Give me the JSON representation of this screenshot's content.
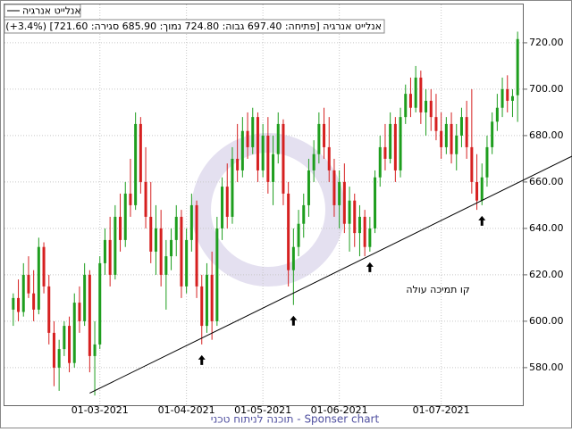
{
  "chart_data": {
    "type": "candlestick",
    "legend": "אנלייט אנרגיה",
    "info": "אנלייט אנרגיה [פתיחה: 697.40  גבוה: 724.80  נמוך: 685.90  סגירה: 721.60] (3.4%+)",
    "annotation": "קו תמיכה עולה",
    "footer": "Sponser chart - תוכנה לניתוח טכני",
    "up_color": "#1e9e1e",
    "down_color": "#d62020",
    "grid": true,
    "ylim": [
      563.8,
      736.9
    ],
    "yticks": [
      {
        "value": 580,
        "label": "580.00"
      },
      {
        "value": 600,
        "label": "600.00"
      },
      {
        "value": 620,
        "label": "620.00"
      },
      {
        "value": 640,
        "label": "640.00"
      },
      {
        "value": 660,
        "label": "660.00"
      },
      {
        "value": 680,
        "label": "680.00"
      },
      {
        "value": 700,
        "label": "700.00"
      },
      {
        "value": 720,
        "label": "720.00"
      }
    ],
    "categories": [
      null,
      null,
      null,
      null,
      null,
      null,
      null,
      null,
      null,
      null,
      null,
      null,
      null,
      null,
      null,
      null,
      null,
      "01-03-2021",
      null,
      null,
      null,
      null,
      null,
      null,
      null,
      null,
      null,
      null,
      null,
      null,
      null,
      null,
      null,
      null,
      "01-04-2021",
      null,
      null,
      null,
      null,
      null,
      null,
      null,
      null,
      null,
      null,
      null,
      null,
      null,
      null,
      "01-05-2021",
      null,
      null,
      null,
      null,
      null,
      null,
      null,
      null,
      null,
      null,
      null,
      null,
      null,
      null,
      "01-06-2021",
      null,
      null,
      null,
      null,
      null,
      null,
      null,
      null,
      null,
      null,
      null,
      null,
      null,
      null,
      null,
      null,
      null,
      null,
      null,
      "01-07-2021",
      null,
      null,
      null,
      null,
      null,
      null,
      null,
      null,
      null,
      null,
      null,
      null,
      null,
      null,
      null
    ],
    "open": [
      605,
      610,
      604,
      620,
      612,
      605,
      632,
      615,
      595,
      580,
      588,
      598,
      582,
      608,
      600,
      620,
      585,
      590,
      625,
      635,
      620,
      645,
      635,
      655,
      650,
      685,
      660,
      645,
      630,
      640,
      620,
      628,
      635,
      645,
      615,
      635,
      650,
      615,
      598,
      620,
      600,
      640,
      658,
      645,
      670,
      665,
      682,
      675,
      688,
      665,
      680,
      660,
      672,
      685,
      655,
      622,
      632,
      642,
      650,
      665,
      672,
      685,
      675,
      665,
      650,
      660,
      642,
      652,
      638,
      645,
      632,
      640,
      662,
      675,
      670,
      685,
      665,
      688,
      698,
      692,
      705,
      690,
      695,
      688,
      682,
      675,
      685,
      672,
      680,
      688,
      675,
      660,
      652,
      662,
      675,
      686,
      692,
      700,
      695,
      697.4
    ],
    "high": [
      612,
      618,
      625,
      628,
      622,
      636,
      634,
      620,
      600,
      592,
      600,
      602,
      612,
      615,
      625,
      622,
      600,
      628,
      640,
      645,
      650,
      655,
      660,
      670,
      690,
      688,
      675,
      660,
      650,
      648,
      635,
      640,
      650,
      648,
      640,
      655,
      652,
      620,
      625,
      630,
      645,
      662,
      668,
      675,
      685,
      688,
      690,
      692,
      690,
      685,
      688,
      680,
      690,
      687,
      660,
      640,
      648,
      655,
      670,
      678,
      690,
      692,
      688,
      670,
      665,
      668,
      658,
      655,
      650,
      648,
      645,
      665,
      680,
      685,
      690,
      688,
      692,
      702,
      705,
      710,
      708,
      700,
      700,
      698,
      690,
      688,
      690,
      685,
      692,
      695,
      700,
      672,
      668,
      680,
      690,
      698,
      705,
      706,
      700,
      724.8
    ],
    "low": [
      598,
      600,
      602,
      610,
      600,
      603,
      612,
      590,
      572,
      570,
      585,
      578,
      580,
      595,
      598,
      578,
      568,
      588,
      620,
      615,
      618,
      630,
      632,
      645,
      648,
      655,
      640,
      625,
      620,
      615,
      605,
      622,
      628,
      610,
      612,
      630,
      610,
      590,
      595,
      592,
      598,
      635,
      640,
      642,
      660,
      662,
      670,
      672,
      660,
      662,
      655,
      650,
      668,
      650,
      615,
      607,
      628,
      636,
      645,
      660,
      668,
      670,
      660,
      645,
      640,
      638,
      630,
      632,
      628,
      628,
      630,
      638,
      658,
      665,
      668,
      660,
      662,
      685,
      688,
      690,
      685,
      680,
      682,
      678,
      670,
      672,
      668,
      665,
      675,
      670,
      655,
      648,
      650,
      658,
      672,
      682,
      688,
      690,
      688,
      685.9
    ],
    "close": [
      610,
      604,
      620,
      612,
      605,
      632,
      615,
      595,
      580,
      588,
      598,
      582,
      608,
      600,
      620,
      585,
      590,
      625,
      635,
      620,
      645,
      635,
      655,
      650,
      685,
      660,
      645,
      630,
      640,
      620,
      628,
      635,
      645,
      615,
      635,
      650,
      615,
      598,
      620,
      600,
      640,
      658,
      645,
      670,
      665,
      682,
      675,
      688,
      665,
      680,
      660,
      672,
      685,
      655,
      622,
      632,
      642,
      650,
      665,
      672,
      685,
      675,
      665,
      650,
      660,
      642,
      652,
      638,
      645,
      632,
      640,
      662,
      675,
      670,
      685,
      665,
      688,
      698,
      692,
      705,
      690,
      695,
      688,
      682,
      675,
      685,
      672,
      680,
      688,
      675,
      660,
      652,
      662,
      675,
      686,
      692,
      700,
      695,
      697,
      721.6
    ],
    "trendline": {
      "x": [
        15,
        99
      ],
      "y": [
        569,
        659.6
      ]
    },
    "markers": [
      37,
      55,
      70,
      92
    ]
  }
}
